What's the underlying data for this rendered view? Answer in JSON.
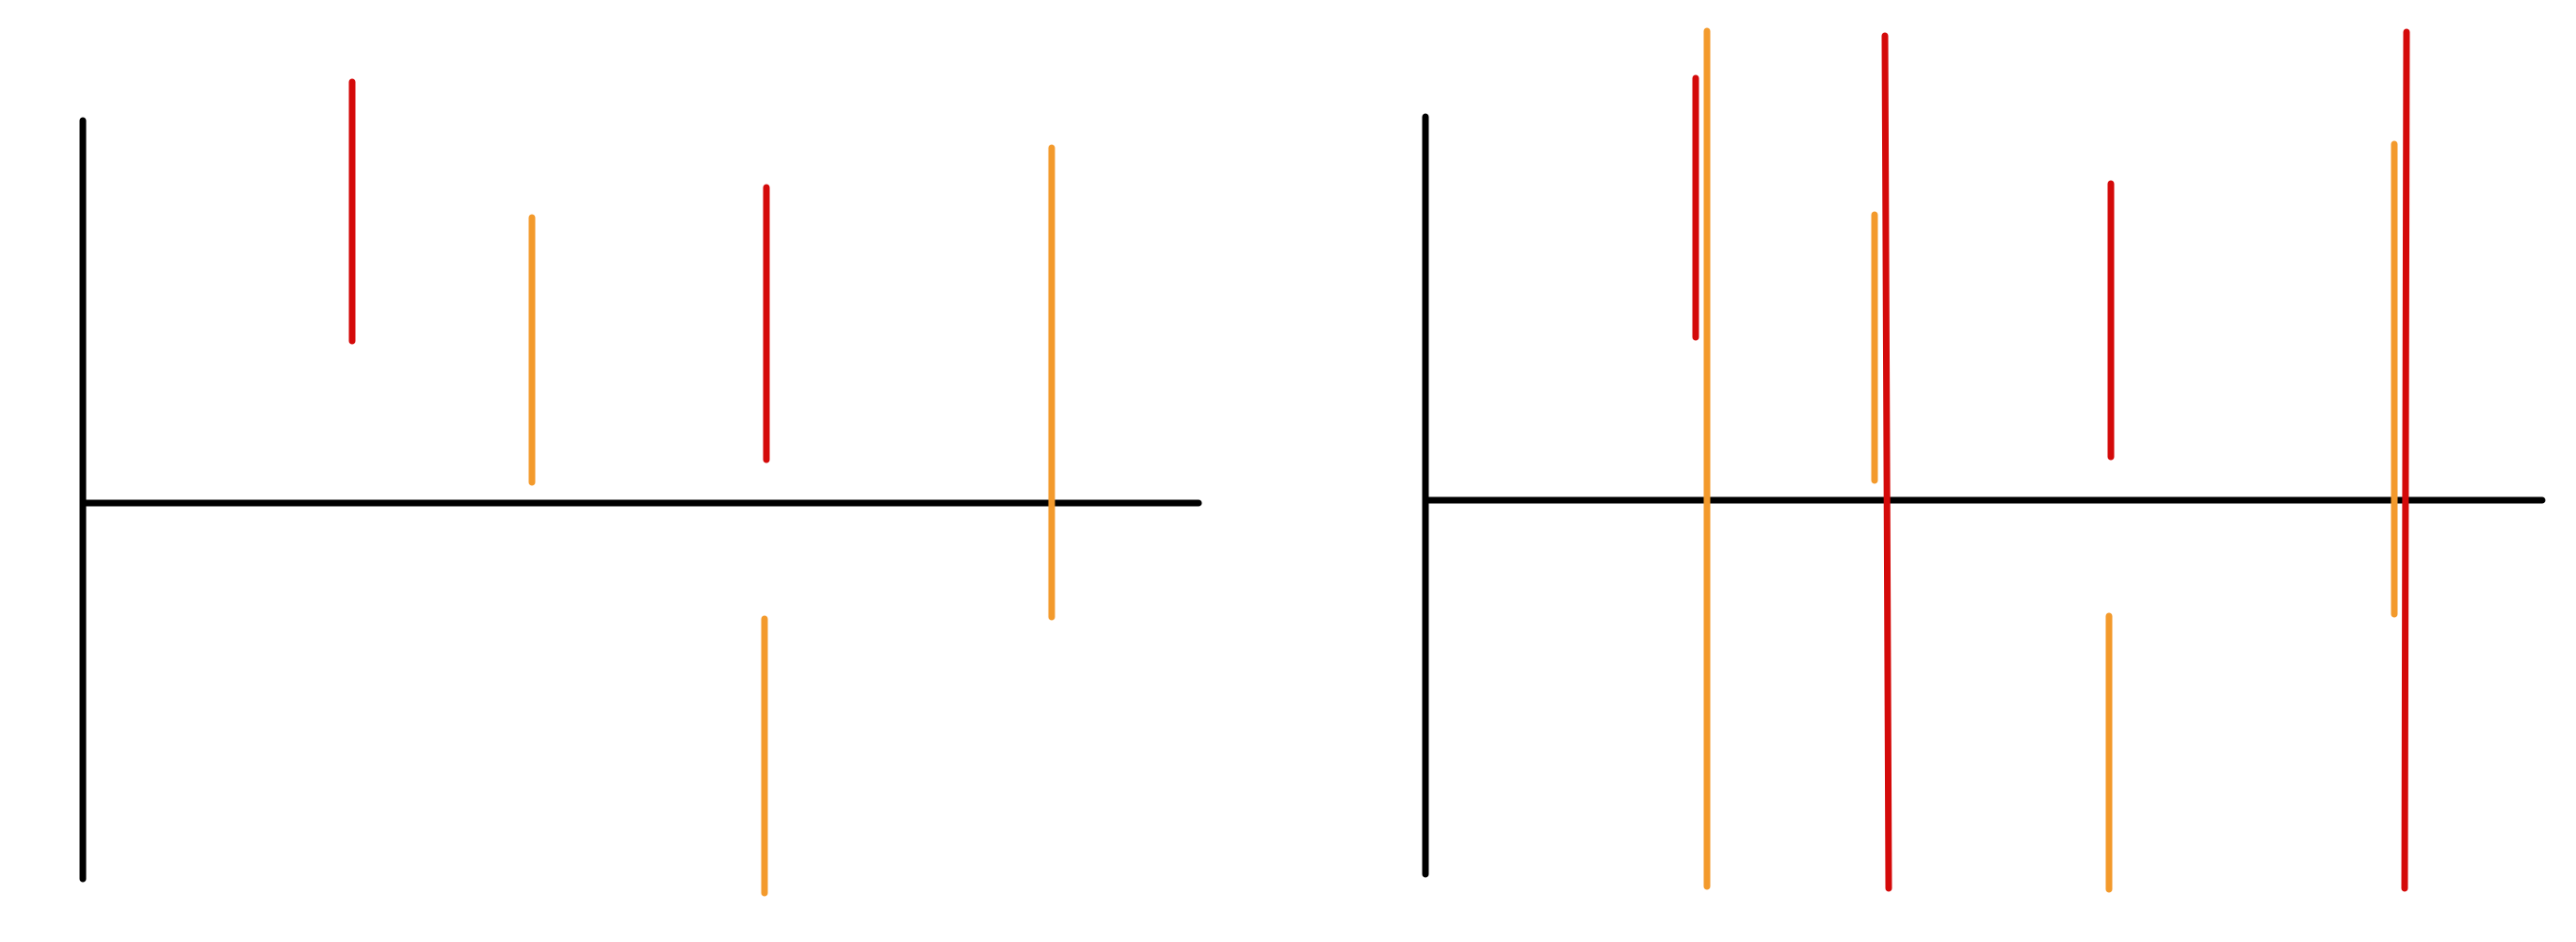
{
  "colors": {
    "axis": "#000000",
    "red": "#d40a0a",
    "orange": "#f39a2c"
  },
  "panels": [
    {
      "name": "left-panel",
      "segments": [
        {
          "name": "red-segment-1",
          "color": "red"
        },
        {
          "name": "orange-segment-1",
          "color": "orange"
        },
        {
          "name": "red-segment-2",
          "color": "red"
        },
        {
          "name": "orange-segment-2",
          "color": "orange"
        },
        {
          "name": "orange-segment-3",
          "color": "orange"
        }
      ]
    },
    {
      "name": "right-panel",
      "segments": [
        {
          "name": "red-segment-1",
          "color": "red"
        },
        {
          "name": "orange-segment-long-1",
          "color": "orange"
        },
        {
          "name": "orange-segment-1",
          "color": "orange"
        },
        {
          "name": "red-segment-long-1",
          "color": "red"
        },
        {
          "name": "red-segment-2",
          "color": "red"
        },
        {
          "name": "orange-segment-2",
          "color": "orange"
        },
        {
          "name": "orange-segment-3",
          "color": "orange"
        },
        {
          "name": "red-segment-long-2",
          "color": "red"
        }
      ]
    }
  ]
}
